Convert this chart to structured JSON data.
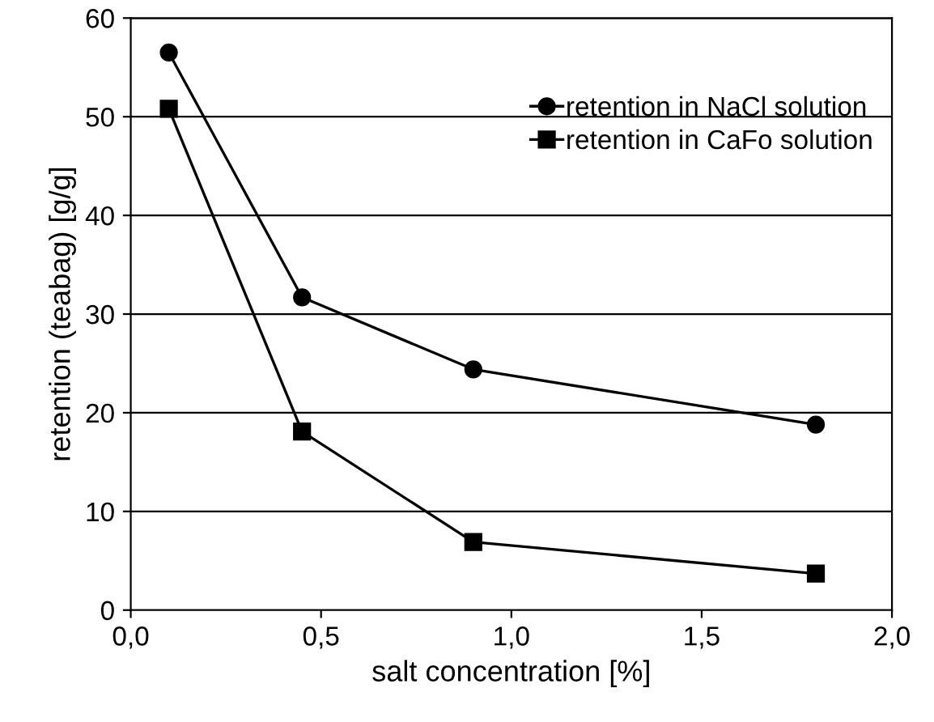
{
  "chart_data": {
    "type": "line",
    "xlabel": "salt concentration [%]",
    "ylabel": "retention (teabag) [g/g]",
    "xlim": [
      0,
      2
    ],
    "xticks": [
      {
        "value": 0,
        "label": "0,0"
      },
      {
        "value": 0.5,
        "label": "0,5"
      },
      {
        "value": 1,
        "label": "1,0"
      },
      {
        "value": 1.5,
        "label": "1,5"
      },
      {
        "value": 2,
        "label": "2,0"
      }
    ],
    "ylim": [
      0,
      60
    ],
    "yticks": [
      0,
      10,
      20,
      30,
      40,
      50,
      60
    ],
    "grid": "y",
    "legend": "top right",
    "series": [
      {
        "name": "retention in NaCl solution",
        "color": "#000000",
        "marker": "circle",
        "x": [
          0.1,
          0.45,
          0.9,
          1.8
        ],
        "values": [
          56.5,
          31.7,
          24.4,
          18.8
        ]
      },
      {
        "name": "retention in CaFo solution",
        "color": "#000000",
        "marker": "square",
        "x": [
          0.1,
          0.45,
          0.9,
          1.8
        ],
        "values": [
          50.8,
          18.1,
          6.9,
          3.7
        ]
      }
    ]
  }
}
